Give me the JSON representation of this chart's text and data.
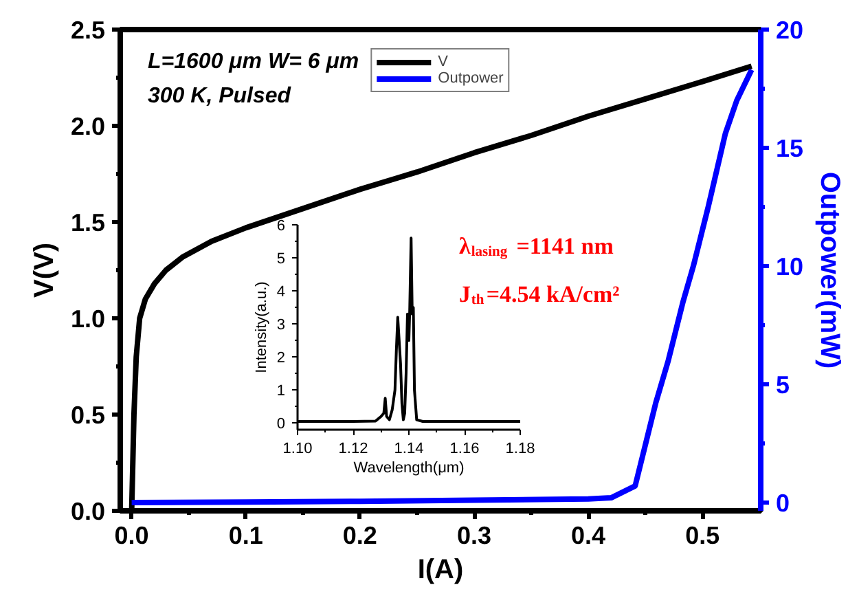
{
  "chart_data": [
    {
      "type": "line",
      "xlabel": "I(A)",
      "ylabel": "V(V)",
      "y2label": "Outpower(mW)",
      "xlim": [
        -0.01,
        0.551
      ],
      "ylim": [
        0,
        2.5
      ],
      "y2lim": [
        -0.35,
        20
      ],
      "xticks": [
        {
          "value": 0,
          "label": "0.0"
        },
        0.1,
        0.2,
        0.3,
        0.4,
        0.5
      ],
      "yticks": [
        {
          "value": 0,
          "label": "0.0"
        },
        0.5,
        {
          "value": 1,
          "label": "1.0"
        },
        1.5,
        {
          "value": 2,
          "label": "2.0"
        },
        2.5
      ],
      "y2ticks": [
        0,
        5,
        10,
        15,
        20
      ],
      "annotations": [
        "L=1600 μm W= 6 μm",
        "300 K, Pulsed"
      ],
      "legend": "top",
      "grid": false,
      "series": [
        {
          "name": "V",
          "color": "#000000",
          "x": [
            0,
            0.002,
            0.004,
            0.007,
            0.012,
            0.02,
            0.03,
            0.045,
            0.07,
            0.1,
            0.15,
            0.2,
            0.25,
            0.3,
            0.35,
            0.4,
            0.45,
            0.5,
            0.543
          ],
          "values": [
            0,
            0.5,
            0.8,
            1.0,
            1.1,
            1.18,
            1.25,
            1.32,
            1.4,
            1.47,
            1.57,
            1.67,
            1.76,
            1.86,
            1.95,
            2.05,
            2.14,
            2.23,
            2.31
          ]
        },
        {
          "name": "Outpower",
          "color": "#0000ff",
          "axis": "y2",
          "x": [
            0,
            0.1,
            0.2,
            0.3,
            0.4,
            0.42,
            0.441,
            0.459,
            0.47,
            0.483,
            0.492,
            0.505,
            0.52,
            0.53,
            0.543
          ],
          "values": [
            0,
            0.02,
            0.05,
            0.1,
            0.15,
            0.2,
            0.7,
            4.2,
            6,
            8.5,
            10,
            12.5,
            15.6,
            17,
            18.3
          ]
        }
      ]
    },
    {
      "type": "line",
      "xlabel": "Wavelength(μm)",
      "ylabel": "Intensity(a.u.)",
      "xlim": [
        1.1,
        1.18
      ],
      "ylim": [
        -0.2,
        6
      ],
      "xticks": [
        {
          "value": 1.1,
          "label": "1.10"
        },
        1.12,
        1.14,
        1.16,
        1.18
      ],
      "yticks": [
        0,
        1,
        2,
        3,
        4,
        5,
        6
      ],
      "annotations": [
        "λ$_{lasing}$=1141 nm",
        "J$_{th}$=4.54 kA/cm²"
      ],
      "grid": false,
      "series": [
        {
          "color": "#000000",
          "x": [
            1.1,
            1.11,
            1.12,
            1.128,
            1.13,
            1.131,
            1.1315,
            1.132,
            1.133,
            1.134,
            1.135,
            1.1355,
            1.136,
            1.1365,
            1.137,
            1.1375,
            1.138,
            1.1385,
            1.139,
            1.1395,
            1.14,
            1.1403,
            1.1408,
            1.1412,
            1.1416,
            1.142,
            1.1428,
            1.145,
            1.15,
            1.16,
            1.17,
            1.18
          ],
          "values": [
            0.05,
            0.05,
            0.05,
            0.06,
            0.2,
            0.3,
            0.75,
            0.2,
            0.1,
            0.4,
            1.0,
            2.2,
            3.2,
            2.5,
            1.8,
            0.6,
            0.1,
            0.3,
            1.5,
            3.3,
            2.5,
            3.4,
            5.6,
            3.3,
            3.5,
            1.0,
            0.1,
            0.05,
            0.05,
            0.05,
            0.05,
            0.05
          ]
        }
      ]
    }
  ]
}
